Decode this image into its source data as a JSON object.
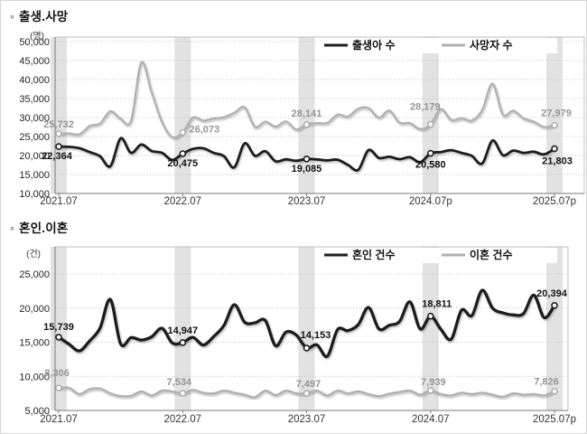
{
  "page": {
    "background": "#ffffff"
  },
  "sections": [
    {
      "bullet": "◦",
      "title": "출생.사망"
    },
    {
      "bullet": "◦",
      "title": "혼인.이혼"
    }
  ],
  "colors": {
    "band": "#e2e2e2",
    "grid": "#c3c3c3",
    "axis_dark": "#7a7a7a",
    "border_light": "#bdbdbd",
    "tick_text": "#222222",
    "xlabel_text": "#333333"
  },
  "chart_data": [
    {
      "type": "line",
      "title": "출생.사망",
      "unit_label": "(명)",
      "x_tick_labels": [
        "2021.07",
        "2022.07",
        "2023.07",
        "2024.07p",
        "2025.07p"
      ],
      "x_tick_indices": [
        0,
        12,
        24,
        36,
        48
      ],
      "highlight_band_indices": [
        0,
        12,
        24,
        36,
        48
      ],
      "x_monthly_span": "2021.07 to 2025.07, monthly",
      "ylim": [
        10000,
        50000
      ],
      "ytick_step": 5000,
      "grid": "dotted-horizontal",
      "legend_position": "top-inside",
      "series": [
        {
          "name": "출생아 수",
          "color": "#1f1f1f",
          "label_color": "#111111",
          "line_width": 2.8,
          "values": [
            22364,
            22291,
            21920,
            20900,
            19800,
            17180,
            24500,
            20700,
            22900,
            21200,
            20700,
            18830,
            20475,
            21750,
            21900,
            20700,
            19840,
            16890,
            23180,
            19940,
            21140,
            18480,
            18990,
            18610,
            19085,
            18980,
            18710,
            18900,
            17530,
            16250,
            21440,
            19360,
            19670,
            19050,
            19550,
            18240,
            20580,
            20900,
            21400,
            20700,
            19900,
            17900,
            23950,
            20100,
            21300,
            20700,
            21000,
            20300,
            21803
          ],
          "point_labels": [
            {
              "index": 0,
              "text": "22,364",
              "dx": -2,
              "dy": 14
            },
            {
              "index": 12,
              "text": "20,475",
              "dx": 0,
              "dy": 14
            },
            {
              "index": 24,
              "text": "19,085",
              "dx": 0,
              "dy": 14
            },
            {
              "index": 36,
              "text": "20,580",
              "dx": 0,
              "dy": 16
            },
            {
              "index": 48,
              "text": "21,803",
              "dx": 3,
              "dy": 17
            }
          ]
        },
        {
          "name": "사망자 수",
          "color": "#b0b0b0",
          "label_color": "#969696",
          "line_width": 2.3,
          "values": [
            25732,
            25837,
            25566,
            27783,
            28426,
            31634,
            29686,
            29189,
            44487,
            36697,
            28859,
            24850,
            26073,
            30001,
            29199,
            29763,
            30107,
            31264,
            32703,
            27560,
            28922,
            27581,
            28958,
            26820,
            28141,
            28555,
            28591,
            30793,
            30255,
            32341,
            32490,
            29977,
            31839,
            28659,
            28546,
            26942,
            28179,
            32244,
            29362,
            29819,
            29219,
            31974,
            38900,
            30800,
            31800,
            29800,
            28900,
            27500,
            27979
          ],
          "point_labels": [
            {
              "index": 0,
              "text": "25,732",
              "dx": 0,
              "dy": -7
            },
            {
              "index": 12,
              "text": "26,073",
              "dx": 24,
              "dy": 0
            },
            {
              "index": 24,
              "text": "28,141",
              "dx": 0,
              "dy": -9
            },
            {
              "index": 36,
              "text": "28,179",
              "dx": -6,
              "dy": -16
            },
            {
              "index": 48,
              "text": "27,979",
              "dx": 2,
              "dy": -10
            }
          ]
        }
      ]
    },
    {
      "type": "line",
      "title": "혼인.이혼",
      "unit_label": "(건)",
      "x_tick_labels": [
        "2021.07",
        "2022.07",
        "2023.07",
        "2024.07",
        "2025.07p"
      ],
      "x_tick_indices": [
        0,
        12,
        24,
        36,
        48
      ],
      "highlight_band_indices": [
        0,
        12,
        24,
        36,
        48
      ],
      "x_monthly_span": "2021.07 to 2025.07, monthly",
      "ylim": [
        5000,
        25000
      ],
      "ytick_step": 5000,
      "grid": "dotted-horizontal",
      "legend_position": "top-inside",
      "series": [
        {
          "name": "혼인 건수",
          "color": "#1f1f1f",
          "label_color": "#111111",
          "line_width": 3.3,
          "values": [
            15739,
            14720,
            13730,
            15200,
            17090,
            21270,
            14750,
            15680,
            15320,
            15800,
            17040,
            14900,
            14947,
            15720,
            14590,
            15830,
            17460,
            20500,
            17930,
            17850,
            18190,
            14480,
            16490,
            16050,
            14153,
            14610,
            12940,
            16850,
            16700,
            17580,
            20100,
            16950,
            17480,
            18040,
            20920,
            16950,
            18811,
            16900,
            15450,
            19700,
            18900,
            22600,
            20000,
            19300,
            19000,
            19200,
            21900,
            18600,
            20394
          ],
          "point_labels": [
            {
              "index": 0,
              "text": "15,739",
              "dx": 0,
              "dy": -8
            },
            {
              "index": 12,
              "text": "14,947",
              "dx": 0,
              "dy": -10
            },
            {
              "index": 24,
              "text": "14,153",
              "dx": 10,
              "dy": -11
            },
            {
              "index": 36,
              "text": "18,811",
              "dx": 7,
              "dy": -10
            },
            {
              "index": 48,
              "text": "20,394",
              "dx": -3,
              "dy": -10
            }
          ]
        },
        {
          "name": "이혼 건수",
          "color": "#b0b0b0",
          "label_color": "#969696",
          "line_width": 2.4,
          "values": [
            8306,
            8320,
            7400,
            8120,
            8200,
            7500,
            7100,
            7140,
            7800,
            7200,
            7900,
            7800,
            7534,
            8000,
            7600,
            7500,
            7900,
            7600,
            7300,
            6950,
            7900,
            7250,
            7900,
            7500,
            7497,
            7900,
            7200,
            7900,
            7500,
            7800,
            7400,
            7100,
            7450,
            7700,
            7900,
            7300,
            7939,
            7400,
            7200,
            7600,
            7400,
            7600,
            7300,
            7000,
            7500,
            7300,
            7400,
            7200,
            7826
          ],
          "point_labels": [
            {
              "index": 0,
              "text": "8,306",
              "dx": -2,
              "dy": -13
            },
            {
              "index": 12,
              "text": "7,534",
              "dx": -4,
              "dy": -9
            },
            {
              "index": 24,
              "text": "7,497",
              "dx": 2,
              "dy": -7
            },
            {
              "index": 36,
              "text": "7,939",
              "dx": 3,
              "dy": -6
            },
            {
              "index": 48,
              "text": "7,826",
              "dx": -9,
              "dy": -7
            }
          ]
        }
      ]
    }
  ]
}
